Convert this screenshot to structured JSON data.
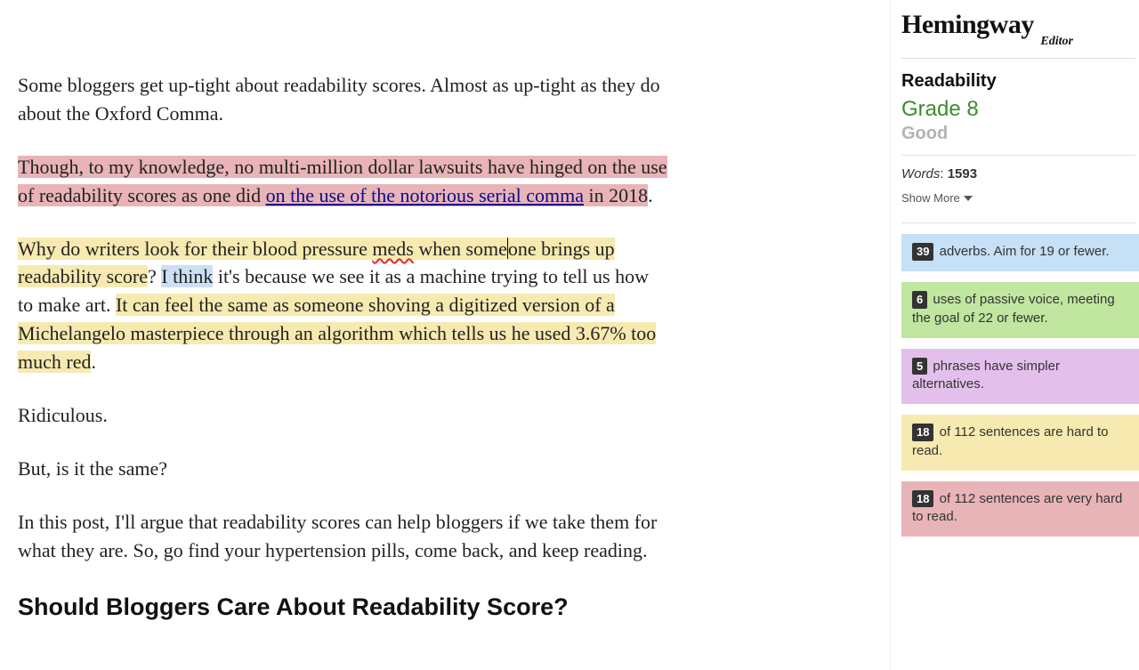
{
  "brand": {
    "name": "Hemingway",
    "sub": "Editor"
  },
  "editor": {
    "p1": "Some bloggers get up-tight about readability scores. Almost as up-tight as they do about the Oxford Comma.",
    "p2a": "Though, to my knowledge, no multi-million dollar lawsuits have hinged on the use of readability scores as one did ",
    "p2_link": "on the use of the notorious serial comma",
    "p2b": " in 2018",
    "p2c": ".",
    "p3a": "Why do writers look for their blood pressure ",
    "p3_meds": "meds",
    "p3b": " when some",
    "p3c": "one brings up readability score",
    "p3d": "? ",
    "p3_think": "I think",
    "p3e": " it's because we see it as a machine trying to tell us how to make art. ",
    "p3f": "It can feel the same as someone shoving a digitized version of a Michelangelo masterpiece through an algorithm which tells us he used 3.67% too much red",
    "p3g": ".",
    "p4": "Ridiculous.",
    "p5": "But, is it the same?",
    "p6": "In this post, I'll argue that readability scores can help bloggers if we take them for what they are. So, go find your hypertension pills, come back, and keep reading.",
    "h2": "Should Bloggers Care About Readability Score?"
  },
  "sidebar": {
    "readability_label": "Readability",
    "grade": "Grade 8",
    "quality": "Good",
    "words_label": "Words",
    "words_sep": ": ",
    "words_count": "1593",
    "show_more": "Show More",
    "cards": {
      "adverbs": {
        "count": "39",
        "text": " adverbs. Aim for 19 or fewer."
      },
      "passive": {
        "count": "6",
        "text": " uses of passive voice, meeting the goal of 22 or fewer."
      },
      "simpler": {
        "count": "5",
        "text": " phrases have simpler alternatives."
      },
      "hard": {
        "count": "18",
        "text": " of 112 sentences are hard to read."
      },
      "veryhard": {
        "count": "18",
        "text": " of 112 sentences are very hard to read."
      }
    }
  },
  "colors": {
    "highlight_red": "#e8b4b8",
    "highlight_yellow": "#f6eab0",
    "highlight_blue": "#ccdff3",
    "grade_green": "#3c8c2a",
    "card_adverbs": "#c6e0f5",
    "card_passive": "#c0e6a0",
    "card_simpler": "#e3bfec",
    "card_hard": "#f6eab0",
    "card_veryhard": "#e8b4b8",
    "badge_bg": "#333333"
  }
}
